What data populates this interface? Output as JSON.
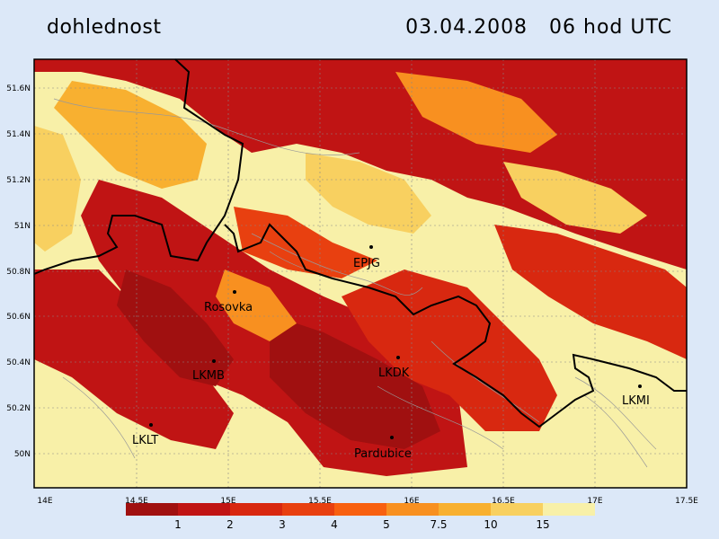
{
  "header": {
    "title": "dohlednost",
    "datetime": "03.04.2008   06 hod UTC"
  },
  "map": {
    "lon_ticks": [
      "14E",
      "14.5E",
      "15E",
      "15.5E",
      "16E",
      "16.5E",
      "17E",
      "17.5E"
    ],
    "lat_ticks": [
      "51.6N",
      "51.4N",
      "51.2N",
      "51N",
      "50.8N",
      "50.6N",
      "50.4N",
      "50.2N",
      "50N"
    ],
    "stations": [
      {
        "name": "EPJG"
      },
      {
        "name": "Rosovka"
      },
      {
        "name": "LKMB"
      },
      {
        "name": "LKDK"
      },
      {
        "name": "LKMI"
      },
      {
        "name": "LKLT"
      },
      {
        "name": "Pardubice"
      }
    ]
  },
  "legend": {
    "labels": [
      "1",
      "2",
      "3",
      "4",
      "5",
      "7.5",
      "10",
      "15"
    ],
    "colors": [
      "#a01010",
      "#c01414",
      "#d82810",
      "#e84010",
      "#f86010",
      "#f89020",
      "#f8b030",
      "#f8d060",
      "#f8f0a8"
    ]
  }
}
